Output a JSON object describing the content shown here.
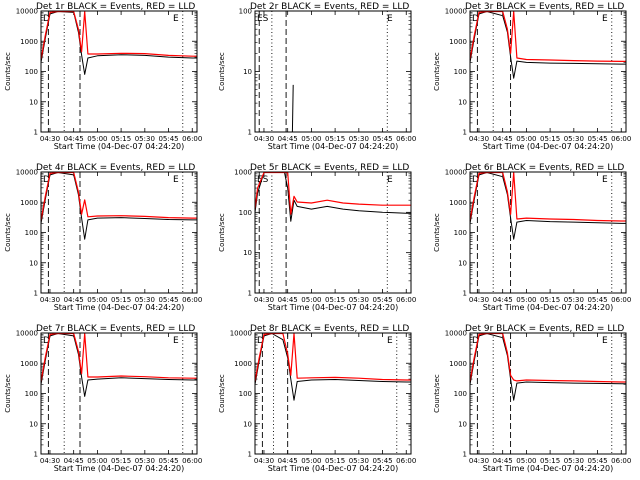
{
  "figure": {
    "x_tick_labels": [
      "04:30",
      "04:45",
      "05:00",
      "05:15",
      "05:30",
      "05:45",
      "06:00"
    ],
    "y_tick_labels": [
      "1",
      "10",
      "100",
      "1000",
      "10000"
    ],
    "ylabel": "Counts/sec",
    "xlabel": "Start Time (04-Dec-07 04:24:20)",
    "colors": {
      "events": "#000000",
      "lld": "#ff0000",
      "frame": "#000000"
    }
  },
  "chart_data": [
    {
      "type": "line",
      "title": "Det 1r BLACK = Events, RED = LLD",
      "corner_labels": [
        "D",
        "E"
      ],
      "xlim": [
        "04:24:20",
        "06:03:00"
      ],
      "ylim": [
        1,
        10000
      ],
      "y_scale": "log",
      "vlines": {
        "dashed": [
          "04:29:00",
          "04:49:00"
        ],
        "dotted": [
          "04:39:00",
          "05:54:00"
        ]
      },
      "series": [
        {
          "name": "Events",
          "x": [
            "04:24:20",
            "04:27:00",
            "04:30:00",
            "04:35:00",
            "04:45:00",
            "04:48:00",
            "04:50:00",
            "04:52:00",
            "04:54:00",
            "05:00:00",
            "05:15:00",
            "05:30:00",
            "05:45:00",
            "06:00:00",
            "06:03:00"
          ],
          "y": [
            200,
            1200,
            8000,
            10000,
            9000,
            2000,
            350,
            80,
            280,
            330,
            360,
            340,
            300,
            280,
            280
          ]
        },
        {
          "name": "LLD",
          "x": [
            "04:24:20",
            "04:27:00",
            "04:30:00",
            "04:35:00",
            "04:45:00",
            "04:48:00",
            "04:50:00",
            "04:52:00",
            "04:54:00",
            "05:00:00",
            "05:15:00",
            "05:30:00",
            "05:45:00",
            "06:00:00",
            "06:03:00"
          ],
          "y": [
            250,
            1500,
            9000,
            10000,
            10000,
            2500,
            450,
            10000,
            380,
            380,
            400,
            390,
            340,
            320,
            320
          ]
        }
      ]
    },
    {
      "type": "line",
      "title": "Det 2r BLACK = Events, RED = LLD",
      "corner_labels": [
        "ES",
        "E"
      ],
      "xlim": [
        "04:24:20",
        "06:03:00"
      ],
      "ylim": [
        1,
        100
      ],
      "y_scale": "log",
      "vlines": {
        "dashed": [
          "04:27:00",
          "04:44:00"
        ],
        "dotted": [
          "04:35:00",
          "05:48:00"
        ]
      },
      "series": [
        {
          "name": "Events",
          "x": [
            "04:48:00",
            "04:48:30"
          ],
          "y": [
            1,
            6
          ]
        },
        {
          "name": "LLD",
          "x": [],
          "y": []
        }
      ]
    },
    {
      "type": "line",
      "title": "Det 3r BLACK = Events, RED = LLD",
      "corner_labels": [
        "D",
        "E"
      ],
      "xlim": [
        "04:24:20",
        "06:03:00"
      ],
      "ylim": [
        1,
        10000
      ],
      "y_scale": "log",
      "vlines": {
        "dashed": [
          "04:29:00",
          "04:50:00"
        ],
        "dotted": [
          "04:39:00",
          "05:54:00"
        ]
      },
      "series": [
        {
          "name": "Events",
          "x": [
            "04:24:20",
            "04:27:00",
            "04:30:00",
            "04:35:00",
            "04:45:00",
            "04:48:00",
            "04:50:00",
            "04:52:00",
            "04:54:00",
            "05:00:00",
            "05:15:00",
            "05:30:00",
            "05:45:00",
            "06:00:00",
            "06:03:00"
          ],
          "y": [
            200,
            1200,
            8000,
            10000,
            7000,
            2000,
            300,
            60,
            220,
            200,
            190,
            185,
            180,
            175,
            175
          ]
        },
        {
          "name": "LLD",
          "x": [
            "04:24:20",
            "04:27:00",
            "04:30:00",
            "04:35:00",
            "04:45:00",
            "04:48:00",
            "04:50:00",
            "04:52:00",
            "04:54:00",
            "05:00:00",
            "05:15:00",
            "05:30:00",
            "05:45:00",
            "06:00:00",
            "06:03:00"
          ],
          "y": [
            250,
            1500,
            9000,
            10000,
            10000,
            2500,
            400,
            10000,
            280,
            250,
            240,
            230,
            220,
            215,
            215
          ]
        }
      ]
    },
    {
      "type": "line",
      "title": "Det 4r BLACK = Events, RED = LLD",
      "corner_labels": [
        "D",
        "E"
      ],
      "xlim": [
        "04:24:20",
        "06:03:00"
      ],
      "ylim": [
        1,
        10000
      ],
      "y_scale": "log",
      "vlines": {
        "dashed": [
          "04:29:00",
          "04:49:00"
        ],
        "dotted": [
          "04:39:00",
          "05:54:00"
        ]
      },
      "series": [
        {
          "name": "Events",
          "x": [
            "04:24:20",
            "04:27:00",
            "04:30:00",
            "04:35:00",
            "04:45:00",
            "04:48:00",
            "04:50:00",
            "04:52:00",
            "04:54:00",
            "05:00:00",
            "05:15:00",
            "05:30:00",
            "05:45:00",
            "06:00:00",
            "06:03:00"
          ],
          "y": [
            200,
            1200,
            8000,
            10000,
            8000,
            1800,
            300,
            60,
            260,
            300,
            310,
            290,
            270,
            260,
            260
          ]
        },
        {
          "name": "LLD",
          "x": [
            "04:24:20",
            "04:27:00",
            "04:30:00",
            "04:35:00",
            "04:45:00",
            "04:48:00",
            "04:50:00",
            "04:52:00",
            "04:54:00",
            "05:00:00",
            "05:15:00",
            "05:30:00",
            "05:45:00",
            "06:00:00",
            "06:03:00"
          ],
          "y": [
            250,
            1500,
            9000,
            10000,
            10000,
            2200,
            400,
            1200,
            330,
            350,
            360,
            340,
            310,
            300,
            300
          ]
        }
      ]
    },
    {
      "type": "line",
      "title": "Det 5r BLACK = Events, RED = LLD",
      "corner_labels": [
        "ES",
        "E"
      ],
      "xlim": [
        "04:24:20",
        "06:03:00"
      ],
      "ylim": [
        1,
        1000
      ],
      "y_scale": "log",
      "vlines": {
        "dashed": [
          "04:27:00",
          "04:44:00"
        ],
        "dotted": [
          "04:35:00",
          "05:48:00"
        ]
      },
      "series": [
        {
          "name": "Events",
          "x": [
            "04:24:20",
            "04:26:00",
            "04:30:00",
            "04:35:00",
            "04:43:00",
            "04:45:00",
            "04:47:00",
            "04:49:00",
            "04:51:00",
            "05:00:00",
            "05:10:00",
            "05:20:00",
            "05:30:00",
            "05:45:00",
            "06:00:00",
            "06:03:00"
          ],
          "y": [
            100,
            300,
            1000,
            1000,
            1000,
            400,
            60,
            200,
            140,
            120,
            140,
            120,
            110,
            100,
            95,
            95
          ]
        },
        {
          "name": "LLD",
          "x": [
            "04:24:20",
            "04:26:00",
            "04:30:00",
            "04:35:00",
            "04:43:00",
            "04:45:00",
            "04:47:00",
            "04:49:00",
            "04:51:00",
            "05:00:00",
            "05:10:00",
            "05:20:00",
            "05:30:00",
            "05:45:00",
            "06:00:00",
            "06:03:00"
          ],
          "y": [
            120,
            400,
            1000,
            1000,
            1000,
            1000,
            90,
            250,
            180,
            170,
            200,
            170,
            160,
            150,
            150,
            150
          ]
        }
      ]
    },
    {
      "type": "line",
      "title": "Det 6r BLACK = Events, RED = LLD",
      "corner_labels": [
        "D",
        "E"
      ],
      "xlim": [
        "04:24:20",
        "06:03:00"
      ],
      "ylim": [
        1,
        10000
      ],
      "y_scale": "log",
      "vlines": {
        "dashed": [
          "04:29:00",
          "04:50:00"
        ],
        "dotted": [
          "04:39:00",
          "05:54:00"
        ]
      },
      "series": [
        {
          "name": "Events",
          "x": [
            "04:24:20",
            "04:27:00",
            "04:30:00",
            "04:35:00",
            "04:45:00",
            "04:48:00",
            "04:50:00",
            "04:52:00",
            "04:54:00",
            "05:00:00",
            "05:15:00",
            "05:30:00",
            "05:45:00",
            "06:00:00",
            "06:03:00"
          ],
          "y": [
            200,
            1200,
            8000,
            10000,
            7000,
            1800,
            300,
            60,
            220,
            250,
            230,
            220,
            210,
            200,
            200
          ]
        },
        {
          "name": "LLD",
          "x": [
            "04:24:20",
            "04:27:00",
            "04:30:00",
            "04:35:00",
            "04:45:00",
            "04:48:00",
            "04:50:00",
            "04:52:00",
            "04:54:00",
            "05:00:00",
            "05:15:00",
            "05:30:00",
            "05:45:00",
            "06:00:00",
            "06:03:00"
          ],
          "y": [
            250,
            1500,
            9000,
            10000,
            10000,
            2200,
            400,
            10000,
            280,
            300,
            280,
            270,
            250,
            240,
            240
          ]
        }
      ]
    },
    {
      "type": "line",
      "title": "Det 7r BLACK = Events, RED = LLD",
      "corner_labels": [
        "D",
        "E"
      ],
      "xlim": [
        "04:24:20",
        "06:03:00"
      ],
      "ylim": [
        1,
        10000
      ],
      "y_scale": "log",
      "vlines": {
        "dashed": [
          "04:29:00",
          "04:49:00"
        ],
        "dotted": [
          "04:39:00",
          "05:54:00"
        ]
      },
      "series": [
        {
          "name": "Events",
          "x": [
            "04:24:20",
            "04:27:00",
            "04:30:00",
            "04:35:00",
            "04:45:00",
            "04:48:00",
            "04:50:00",
            "04:52:00",
            "04:54:00",
            "05:00:00",
            "05:15:00",
            "05:30:00",
            "05:45:00",
            "06:00:00",
            "06:03:00"
          ],
          "y": [
            200,
            1200,
            8000,
            10000,
            8000,
            2000,
            350,
            80,
            280,
            300,
            330,
            310,
            290,
            280,
            280
          ]
        },
        {
          "name": "LLD",
          "x": [
            "04:24:20",
            "04:27:00",
            "04:30:00",
            "04:35:00",
            "04:45:00",
            "04:48:00",
            "04:50:00",
            "04:52:00",
            "04:54:00",
            "05:00:00",
            "05:15:00",
            "05:30:00",
            "05:45:00",
            "06:00:00",
            "06:03:00"
          ],
          "y": [
            250,
            1500,
            9000,
            10000,
            10000,
            2500,
            450,
            10000,
            350,
            350,
            380,
            360,
            330,
            320,
            320
          ]
        }
      ]
    },
    {
      "type": "line",
      "title": "Det 8r BLACK = Events, RED = LLD",
      "corner_labels": [
        "D",
        "E"
      ],
      "xlim": [
        "04:24:20",
        "06:03:00"
      ],
      "ylim": [
        1,
        10000
      ],
      "y_scale": "log",
      "vlines": {
        "dashed": [
          "04:29:00",
          "04:45:00"
        ],
        "dotted": [
          "04:36:00",
          "05:54:00"
        ]
      },
      "series": [
        {
          "name": "Events",
          "x": [
            "04:24:20",
            "04:27:00",
            "04:30:00",
            "04:35:00",
            "04:42:00",
            "04:45:00",
            "04:47:00",
            "04:49:00",
            "04:51:00",
            "05:00:00",
            "05:15:00",
            "05:30:00",
            "05:45:00",
            "06:00:00",
            "06:03:00"
          ],
          "y": [
            200,
            1200,
            8000,
            10000,
            6000,
            1500,
            300,
            60,
            250,
            280,
            290,
            270,
            250,
            240,
            240
          ]
        },
        {
          "name": "LLD",
          "x": [
            "04:24:20",
            "04:27:00",
            "04:30:00",
            "04:35:00",
            "04:42:00",
            "04:45:00",
            "04:47:00",
            "04:49:00",
            "04:51:00",
            "05:00:00",
            "05:15:00",
            "05:30:00",
            "05:45:00",
            "06:00:00",
            "06:03:00"
          ],
          "y": [
            250,
            1500,
            9000,
            10000,
            10000,
            2000,
            400,
            10000,
            320,
            330,
            340,
            320,
            290,
            280,
            280
          ]
        }
      ]
    },
    {
      "type": "line",
      "title": "Det 9r BLACK = Events, RED = LLD",
      "corner_labels": [
        "D",
        "E"
      ],
      "xlim": [
        "04:24:20",
        "06:03:00"
      ],
      "ylim": [
        1,
        10000
      ],
      "y_scale": "log",
      "vlines": {
        "dashed": [
          "04:29:00",
          "04:50:00"
        ],
        "dotted": [
          "04:39:00",
          "05:54:00"
        ]
      },
      "series": [
        {
          "name": "Events",
          "x": [
            "04:24:20",
            "04:27:00",
            "04:30:00",
            "04:35:00",
            "04:45:00",
            "04:48:00",
            "04:50:00",
            "04:52:00",
            "04:54:00",
            "05:00:00",
            "05:15:00",
            "05:30:00",
            "05:45:00",
            "06:00:00",
            "06:03:00"
          ],
          "y": [
            200,
            1200,
            8000,
            10000,
            7000,
            1800,
            300,
            60,
            220,
            240,
            230,
            220,
            215,
            210,
            210
          ]
        },
        {
          "name": "LLD",
          "x": [
            "04:24:20",
            "04:27:00",
            "04:30:00",
            "04:35:00",
            "04:45:00",
            "04:48:00",
            "04:50:00",
            "04:52:00",
            "04:54:00",
            "05:00:00",
            "05:15:00",
            "05:30:00",
            "05:45:00",
            "06:00:00",
            "06:03:00"
          ],
          "y": [
            250,
            1500,
            9000,
            10000,
            10000,
            2200,
            400,
            280,
            260,
            280,
            270,
            260,
            250,
            240,
            240
          ]
        }
      ]
    }
  ]
}
